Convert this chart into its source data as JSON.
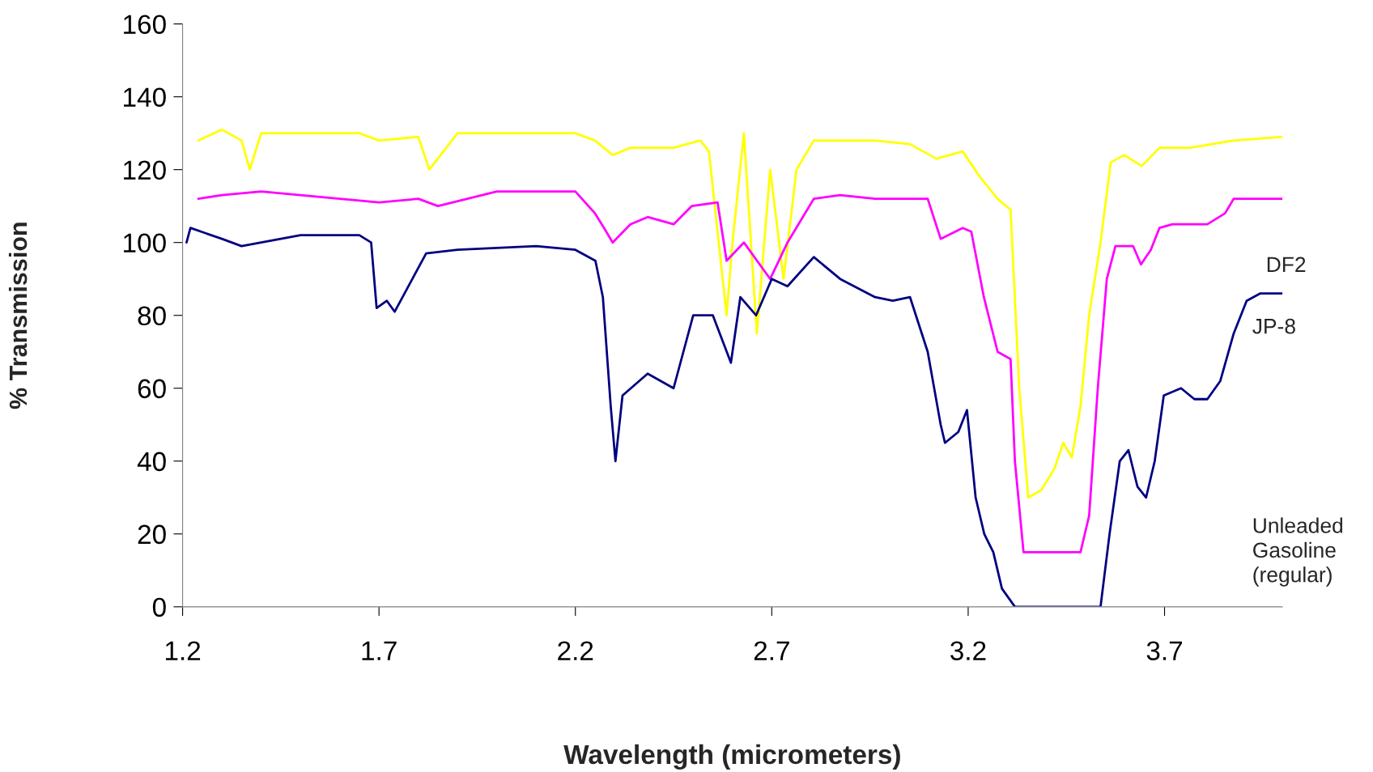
{
  "chart_data": {
    "type": "line",
    "xlabel": "Wavelength (micrometers)",
    "ylabel": "% Transmission",
    "xlim": [
      1.2,
      4.0
    ],
    "xticks": [
      1.2,
      1.7,
      2.2,
      2.7,
      3.2,
      3.7
    ],
    "ylim": [
      0,
      160
    ],
    "yticks": [
      0,
      20,
      40,
      60,
      80,
      100,
      120,
      140,
      160
    ],
    "grid": false,
    "legend": false,
    "series": [
      {
        "color": "#ffff00",
        "x": [
          1.24,
          1.3,
          1.35,
          1.371,
          1.4,
          1.65,
          1.7,
          1.8,
          1.828,
          1.9,
          2.2,
          2.25,
          2.295,
          2.34,
          2.45,
          2.518,
          2.54,
          2.585,
          2.6,
          2.629,
          2.662,
          2.696,
          2.73,
          2.763,
          2.807,
          2.963,
          3.052,
          3.119,
          3.186,
          3.23,
          3.275,
          3.308,
          3.33,
          3.353,
          3.386,
          3.42,
          3.442,
          3.464,
          3.486,
          3.508,
          3.537,
          3.563,
          3.597,
          3.642,
          3.687,
          3.765,
          3.876,
          4.0
        ],
        "values": [
          128,
          131,
          128,
          120,
          130,
          130,
          128,
          129,
          120,
          130,
          130,
          128,
          124,
          126,
          126,
          128,
          125,
          80,
          100,
          130,
          75,
          120,
          90,
          120,
          128,
          128,
          127,
          123,
          125,
          118,
          112,
          109,
          60,
          30,
          32,
          38,
          45,
          41,
          55,
          80,
          100,
          122,
          124,
          121,
          126,
          126,
          128,
          129
        ]
      },
      {
        "color": "#ff00ff",
        "x": [
          1.24,
          1.3,
          1.4,
          1.7,
          1.8,
          1.85,
          2.0,
          2.2,
          2.25,
          2.273,
          2.295,
          2.34,
          2.384,
          2.45,
          2.496,
          2.562,
          2.585,
          2.629,
          2.696,
          2.74,
          2.807,
          2.874,
          2.963,
          3.097,
          3.13,
          3.186,
          3.208,
          3.24,
          3.275,
          3.308,
          3.319,
          3.341,
          3.486,
          3.508,
          3.53,
          3.553,
          3.575,
          3.62,
          3.64,
          3.665,
          3.687,
          3.72,
          3.809,
          3.854,
          3.876,
          4.0
        ],
        "values": [
          112,
          113,
          114,
          111,
          112,
          110,
          114,
          114,
          108,
          104,
          100,
          105,
          107,
          105,
          110,
          111,
          95,
          100,
          90,
          100,
          112,
          113,
          112,
          112,
          101,
          104,
          103,
          85,
          70,
          68,
          40,
          15,
          15,
          25,
          60,
          90,
          99,
          99,
          94,
          98,
          104,
          105,
          105,
          108,
          112,
          112
        ]
      },
      {
        "color": "#000080",
        "x": [
          1.21,
          1.22,
          1.3,
          1.35,
          1.5,
          1.65,
          1.68,
          1.694,
          1.72,
          1.74,
          1.78,
          1.82,
          1.9,
          2.1,
          2.2,
          2.251,
          2.27,
          2.29,
          2.302,
          2.32,
          2.384,
          2.45,
          2.5,
          2.55,
          2.596,
          2.62,
          2.66,
          2.7,
          2.74,
          2.807,
          2.874,
          2.963,
          3.008,
          3.052,
          3.097,
          3.13,
          3.141,
          3.175,
          3.197,
          3.219,
          3.241,
          3.264,
          3.286,
          3.319,
          3.537,
          3.56,
          3.586,
          3.608,
          3.631,
          3.653,
          3.675,
          3.698,
          3.742,
          3.776,
          3.809,
          3.842,
          3.876,
          3.909,
          3.943,
          4.0
        ],
        "values": [
          100,
          104,
          101,
          99,
          102,
          102,
          100,
          82,
          84,
          81,
          89,
          97,
          98,
          99,
          98,
          95,
          85,
          55,
          40,
          58,
          64,
          60,
          80,
          80,
          67,
          85,
          80,
          90,
          88,
          96,
          90,
          85,
          84,
          85,
          70,
          50,
          45,
          48,
          54,
          30,
          20,
          15,
          5,
          0,
          0,
          20,
          40,
          43,
          33,
          30,
          40,
          58,
          60,
          57,
          57,
          62,
          75,
          84,
          86,
          86
        ]
      }
    ],
    "annotations": [
      "DF2",
      "JP-8",
      "Unleaded\nGasoline\n(regular)"
    ]
  }
}
